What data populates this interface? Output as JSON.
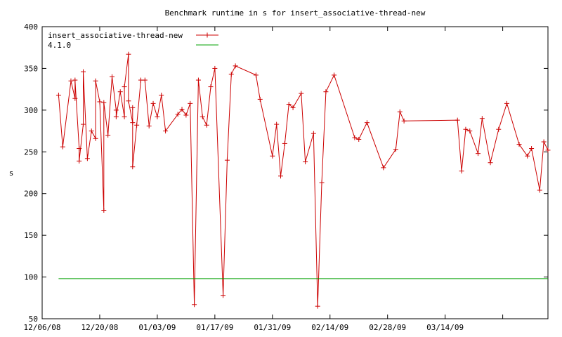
{
  "chart_data": {
    "type": "line",
    "title": "Benchmark runtime in s for insert_associative-thread-new",
    "xlabel": "",
    "ylabel": "s",
    "xlim": [
      "2008-12-06",
      "2009-04-04"
    ],
    "ylim": [
      50,
      400
    ],
    "yticks": [
      50,
      100,
      150,
      200,
      250,
      300,
      350,
      400
    ],
    "xticks": [
      {
        "date": "2008-12-06",
        "label": "12/06/08"
      },
      {
        "date": "2008-12-20",
        "label": "12/20/08"
      },
      {
        "date": "2009-01-03",
        "label": "01/03/09"
      },
      {
        "date": "2009-01-17",
        "label": "01/17/09"
      },
      {
        "date": "2009-01-31",
        "label": "01/31/09"
      },
      {
        "date": "2009-02-14",
        "label": "02/14/09"
      },
      {
        "date": "2009-02-28",
        "label": "02/28/09"
      },
      {
        "date": "2009-03-14",
        "label": "03/14/09"
      },
      {
        "date": "2009-03-28",
        "label": ""
      }
    ],
    "grid": false,
    "legend_position": "top-left",
    "series": [
      {
        "name": "insert_associative-thread-new",
        "color": "#cc0000",
        "marker": "plus",
        "points": [
          [
            "2008-12-10",
            318
          ],
          [
            "2008-12-11",
            256
          ],
          [
            "2008-12-13",
            335
          ],
          [
            "2008-12-14",
            314
          ],
          [
            "2008-12-14",
            336
          ],
          [
            "2008-12-15",
            254
          ],
          [
            "2008-12-15",
            239
          ],
          [
            "2008-12-16",
            283
          ],
          [
            "2008-12-16",
            346
          ],
          [
            "2008-12-17",
            242
          ],
          [
            "2008-12-18",
            275
          ],
          [
            "2008-12-19",
            266
          ],
          [
            "2008-12-19",
            335
          ],
          [
            "2008-12-20",
            310
          ],
          [
            "2008-12-21",
            180
          ],
          [
            "2008-12-21",
            309
          ],
          [
            "2008-12-22",
            270
          ],
          [
            "2008-12-23",
            340
          ],
          [
            "2008-12-24",
            300
          ],
          [
            "2008-12-24",
            292
          ],
          [
            "2008-12-25",
            322
          ],
          [
            "2008-12-26",
            292
          ],
          [
            "2008-12-26",
            328
          ],
          [
            "2008-12-27",
            367
          ],
          [
            "2008-12-27",
            311
          ],
          [
            "2008-12-28",
            285
          ],
          [
            "2008-12-28",
            303
          ],
          [
            "2008-12-28",
            232
          ],
          [
            "2008-12-29",
            282
          ],
          [
            "2008-12-30",
            336
          ],
          [
            "2008-12-31",
            336
          ],
          [
            "2009-01-01",
            281
          ],
          [
            "2009-01-02",
            308
          ],
          [
            "2009-01-03",
            292
          ],
          [
            "2009-01-04",
            318
          ],
          [
            "2009-01-05",
            275
          ],
          [
            "2009-01-08",
            295
          ],
          [
            "2009-01-09",
            301
          ],
          [
            "2009-01-10",
            294
          ],
          [
            "2009-01-11",
            308
          ],
          [
            "2009-01-12",
            67
          ],
          [
            "2009-01-13",
            336
          ],
          [
            "2009-01-14",
            292
          ],
          [
            "2009-01-15",
            282
          ],
          [
            "2009-01-16",
            328
          ],
          [
            "2009-01-17",
            350
          ],
          [
            "2009-01-19",
            78
          ],
          [
            "2009-01-20",
            240
          ],
          [
            "2009-01-21",
            343
          ],
          [
            "2009-01-22",
            353
          ],
          [
            "2009-01-27",
            342
          ],
          [
            "2009-01-28",
            313
          ],
          [
            "2009-01-31",
            245
          ],
          [
            "2009-02-01",
            283
          ],
          [
            "2009-02-02",
            221
          ],
          [
            "2009-02-03",
            260
          ],
          [
            "2009-02-04",
            307
          ],
          [
            "2009-02-05",
            303
          ],
          [
            "2009-02-07",
            320
          ],
          [
            "2009-02-08",
            238
          ],
          [
            "2009-02-10",
            272
          ],
          [
            "2009-02-11",
            65
          ],
          [
            "2009-02-12",
            213
          ],
          [
            "2009-02-13",
            322
          ],
          [
            "2009-02-15",
            342
          ],
          [
            "2009-02-20",
            267
          ],
          [
            "2009-02-21",
            265
          ],
          [
            "2009-02-23",
            285
          ],
          [
            "2009-02-27",
            231
          ],
          [
            "2009-03-02",
            253
          ],
          [
            "2009-03-03",
            298
          ],
          [
            "2009-03-04",
            287
          ],
          [
            "2009-03-17",
            288
          ],
          [
            "2009-03-18",
            227
          ],
          [
            "2009-03-19",
            277
          ],
          [
            "2009-03-20",
            275
          ],
          [
            "2009-03-22",
            248
          ],
          [
            "2009-03-23",
            290
          ],
          [
            "2009-03-25",
            237
          ],
          [
            "2009-03-27",
            277
          ],
          [
            "2009-03-29",
            308
          ],
          [
            "2009-04-01",
            259
          ],
          [
            "2009-04-03",
            245
          ],
          [
            "2009-04-04",
            254
          ],
          [
            "2009-04-06",
            204
          ],
          [
            "2009-04-07",
            262
          ],
          [
            "2009-04-08",
            252
          ]
        ]
      },
      {
        "name": "4.1.0",
        "color": "#00a000",
        "marker": "none",
        "points": [
          [
            "2008-12-10",
            98
          ],
          [
            "2009-04-08",
            98
          ]
        ]
      }
    ]
  }
}
